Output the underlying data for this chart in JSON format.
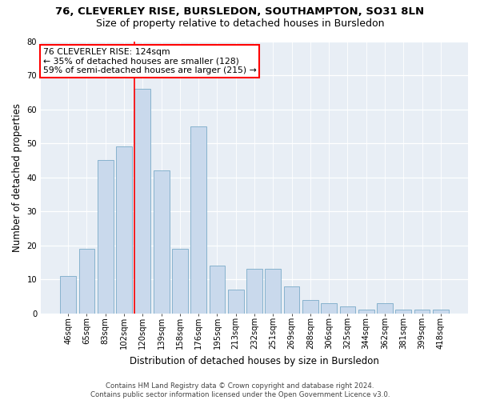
{
  "title": "76, CLEVERLEY RISE, BURSLEDON, SOUTHAMPTON, SO31 8LN",
  "subtitle": "Size of property relative to detached houses in Bursledon",
  "xlabel": "Distribution of detached houses by size in Bursledon",
  "ylabel": "Number of detached properties",
  "categories": [
    "46sqm",
    "65sqm",
    "83sqm",
    "102sqm",
    "120sqm",
    "139sqm",
    "158sqm",
    "176sqm",
    "195sqm",
    "213sqm",
    "232sqm",
    "251sqm",
    "269sqm",
    "288sqm",
    "306sqm",
    "325sqm",
    "344sqm",
    "362sqm",
    "381sqm",
    "399sqm",
    "418sqm"
  ],
  "values": [
    11,
    19,
    45,
    49,
    66,
    42,
    19,
    55,
    14,
    7,
    13,
    13,
    8,
    4,
    3,
    2,
    1,
    3,
    1,
    1,
    1
  ],
  "bar_color": "#c9d9ec",
  "bar_edgecolor": "#7aaac8",
  "ylim": [
    0,
    80
  ],
  "yticks": [
    0,
    10,
    20,
    30,
    40,
    50,
    60,
    70,
    80
  ],
  "property_label": "76 CLEVERLEY RISE: 124sqm",
  "annotation_line1": "← 35% of detached houses are smaller (128)",
  "annotation_line2": "59% of semi-detached houses are larger (215) →",
  "red_line_bar_index": 4,
  "background_color": "#e8eef5",
  "footer_line1": "Contains HM Land Registry data © Crown copyright and database right 2024.",
  "footer_line2": "Contains public sector information licensed under the Open Government Licence v3.0.",
  "title_fontsize": 9.5,
  "subtitle_fontsize": 9,
  "xlabel_fontsize": 8.5,
  "ylabel_fontsize": 8.5,
  "annotation_fontsize": 7.8,
  "tick_fontsize": 7.2,
  "footer_fontsize": 6.2
}
